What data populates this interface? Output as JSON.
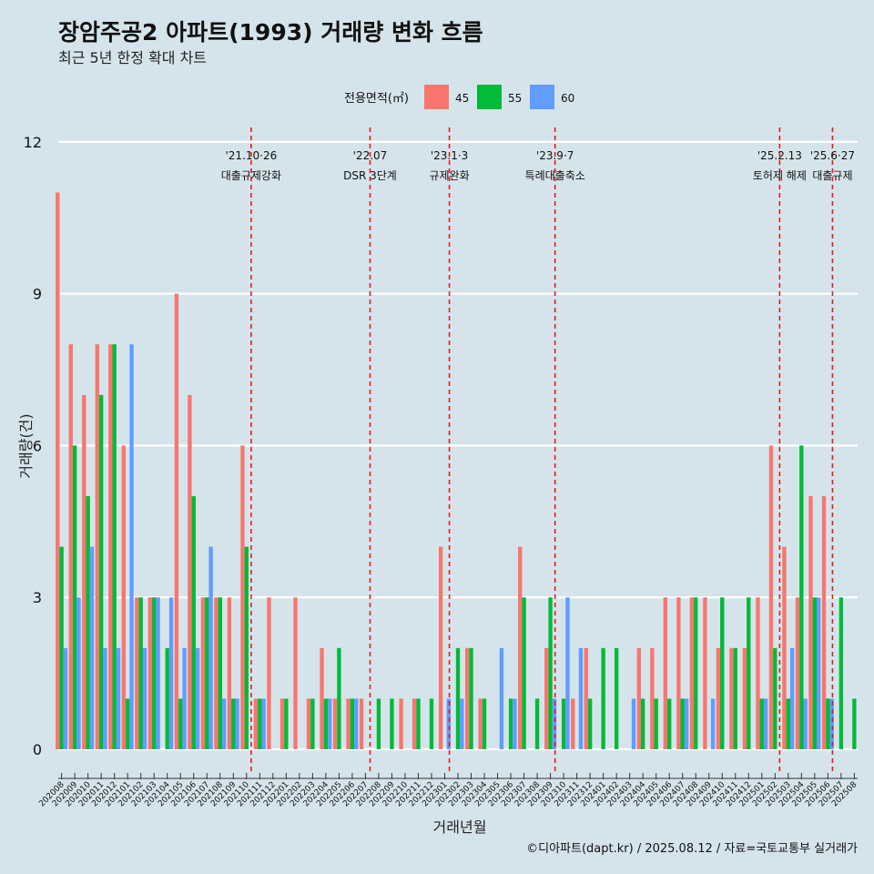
{
  "chart_data": {
    "type": "bar",
    "title": "장암주공2 아파트(1993) 거래량 변화 흐름",
    "subtitle": "최근 5년 한정 확대 차트",
    "xlabel": "거래년월",
    "ylabel": "거래량(건)",
    "ylim": [
      -0.5,
      12.5
    ],
    "yticks": [
      0,
      3,
      6,
      9,
      12
    ],
    "legend": {
      "title": "전용면적(㎡)",
      "position": "top",
      "items": [
        {
          "name": "45",
          "color": "#f8766d"
        },
        {
          "name": "55",
          "color": "#00ba38"
        },
        {
          "name": "60",
          "color": "#619cff"
        }
      ]
    },
    "categories": [
      "202008",
      "202009",
      "202010",
      "202011",
      "202012",
      "202101",
      "202102",
      "202103",
      "202104",
      "202105",
      "202106",
      "202107",
      "202108",
      "202109",
      "202110",
      "202111",
      "202112",
      "202201",
      "202202",
      "202203",
      "202204",
      "202205",
      "202206",
      "202207",
      "202208",
      "202209",
      "202210",
      "202211",
      "202212",
      "202301",
      "202302",
      "202303",
      "202304",
      "202305",
      "202306",
      "202307",
      "202308",
      "202309",
      "202310",
      "202311",
      "202312",
      "202401",
      "202402",
      "202403",
      "202404",
      "202405",
      "202406",
      "202407",
      "202408",
      "202409",
      "202410",
      "202411",
      "202412",
      "202501",
      "202502",
      "202503",
      "202504",
      "202505",
      "202506",
      "202507",
      "202508"
    ],
    "series": [
      {
        "name": "45",
        "color": "#f8766d",
        "values": [
          11,
          8,
          7,
          8,
          8,
          6,
          3,
          3,
          0,
          9,
          7,
          3,
          3,
          3,
          6,
          1,
          3,
          1,
          3,
          1,
          2,
          1,
          1,
          1,
          0,
          0,
          1,
          1,
          0,
          4,
          0,
          2,
          1,
          0,
          0,
          4,
          0,
          2,
          0,
          1,
          2,
          0,
          0,
          0,
          2,
          2,
          3,
          3,
          3,
          3,
          2,
          2,
          2,
          3,
          6,
          4,
          3,
          5,
          5,
          0,
          0
        ]
      },
      {
        "name": "55",
        "color": "#00ba38",
        "values": [
          4,
          6,
          5,
          7,
          8,
          1,
          3,
          3,
          2,
          1,
          5,
          3,
          3,
          1,
          4,
          1,
          0,
          1,
          0,
          1,
          1,
          2,
          1,
          0,
          1,
          1,
          0,
          1,
          1,
          0,
          2,
          2,
          1,
          0,
          1,
          3,
          1,
          3,
          1,
          0,
          1,
          2,
          2,
          0,
          1,
          1,
          1,
          1,
          3,
          0,
          3,
          2,
          3,
          1,
          2,
          1,
          6,
          3,
          1,
          3,
          1
        ]
      },
      {
        "name": "60",
        "color": "#619cff",
        "values": [
          2,
          3,
          4,
          2,
          2,
          8,
          2,
          3,
          3,
          2,
          2,
          4,
          1,
          1,
          0,
          1,
          0,
          0,
          0,
          0,
          1,
          0,
          1,
          0,
          0,
          0,
          0,
          0,
          0,
          1,
          1,
          0,
          0,
          2,
          1,
          0,
          0,
          1,
          3,
          2,
          0,
          0,
          0,
          1,
          0,
          0,
          0,
          1,
          0,
          1,
          0,
          0,
          0,
          1,
          0,
          2,
          1,
          3,
          1,
          0,
          0
        ]
      }
    ],
    "annotations": [
      {
        "date": "'21.10·26",
        "label": "대출규제강화",
        "x": "202110"
      },
      {
        "date": "'22.07",
        "label": "DSR 3단계",
        "x": "202207"
      },
      {
        "date": "'23.1·3",
        "label": "규제완화",
        "x": "202301"
      },
      {
        "date": "'23.9·7",
        "label": "특례대출축소",
        "x": "202309"
      },
      {
        "date": "'25.2.13",
        "label": "토허제 해제",
        "x": "202502"
      },
      {
        "date": "'25.6·27",
        "label": "대출규제",
        "x": "202506"
      }
    ],
    "caption": "©디아파트(dapt.kr) / 2025.08.12 / 자료=국토교통부 실거래가",
    "grid": true
  }
}
